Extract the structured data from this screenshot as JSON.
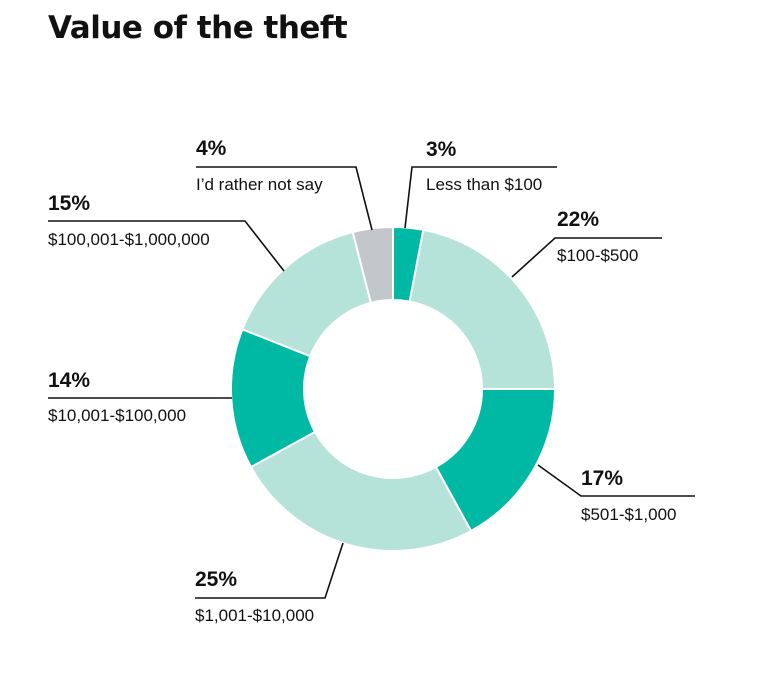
{
  "chart_data": {
    "type": "pie",
    "title": "Value of the theft",
    "categories": [
      "Less than $100",
      "$100-$500",
      "$501-$1,000",
      "$1,001-$10,000",
      "$10,001-$100,000",
      "$100,001-$1,000,000",
      "I’d rather not say"
    ],
    "values": [
      3,
      22,
      17,
      25,
      14,
      15,
      4
    ],
    "value_labels": [
      "3%",
      "22%",
      "17%",
      "25%",
      "14%",
      "15%",
      "4%"
    ],
    "unit": "%",
    "donut": true,
    "legend": "none",
    "colors": [
      "#00b9a5",
      "#b5e2d9",
      "#00b9a5",
      "#b5e2d9",
      "#00b9a5",
      "#b5e2d9",
      "#c3c7cb"
    ]
  }
}
